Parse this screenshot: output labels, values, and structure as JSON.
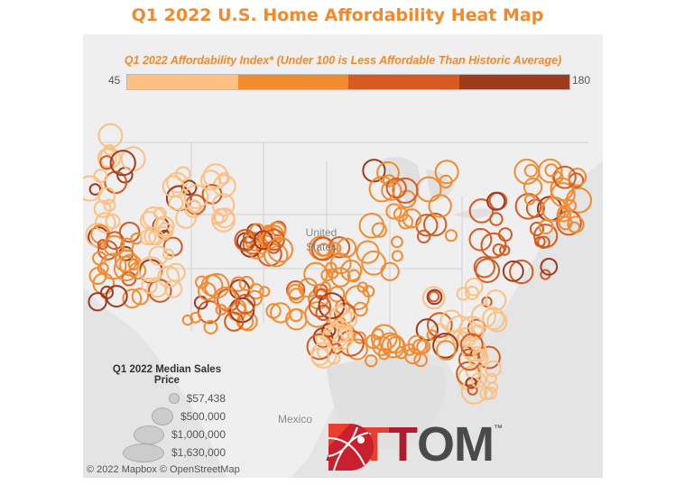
{
  "title": "Q1 2022 U.S. Home Affordability Heat Map",
  "color_legend": {
    "title": "Q1 2022 Affordability Index* (Under 100 is Less Affordable Than Historic Average)",
    "min": "45",
    "max": "180",
    "colors": [
      "#fdc083",
      "#f28b30",
      "#d75a20",
      "#9e3a1e"
    ]
  },
  "places": {
    "country": "United States",
    "mexico": "Mexico"
  },
  "size_legend": {
    "title": "Q1 2022 Median Sales Price",
    "items": [
      "$57,438",
      "$500,000",
      "$1,000,000",
      "$1,630,000"
    ]
  },
  "credit": "© 2022 Mapbox © OpenStreetMap",
  "logo": {
    "letters": [
      "A",
      "T",
      "T",
      "O",
      "M"
    ],
    "tm": "™"
  }
}
